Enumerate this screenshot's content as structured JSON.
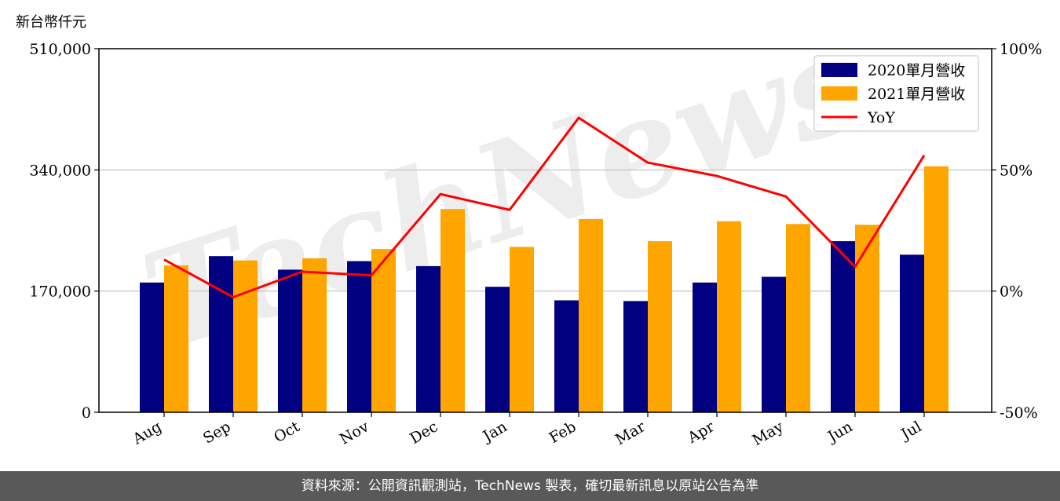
{
  "unit_label": "新台幣仟元",
  "footer_text": "資料來源：公開資訊觀測站，TechNews 製表，確切最新訊息以原站公告為準",
  "watermark": "TechNews",
  "chart_data": {
    "type": "bar",
    "categories": [
      "Aug",
      "Sep",
      "Oct",
      "Nov",
      "Dec",
      "Jan",
      "Feb",
      "Mar",
      "Apr",
      "May",
      "Jun",
      "Jul"
    ],
    "series": [
      {
        "name": "2020單月營收",
        "type": "bar",
        "color": "#000080",
        "values": [
          182000,
          219000,
          200000,
          212000,
          205000,
          176000,
          157000,
          156000,
          182000,
          190000,
          240000,
          221000
        ]
      },
      {
        "name": "2021單月營收",
        "type": "bar",
        "color": "#FFA500",
        "values": [
          206000,
          213000,
          216000,
          229000,
          285000,
          232000,
          271000,
          240000,
          268000,
          264000,
          263000,
          345000
        ]
      },
      {
        "name": "YoY",
        "type": "line",
        "axis": "right",
        "color": "#FF0000",
        "values": [
          0.13,
          -0.025,
          0.08,
          0.065,
          0.4,
          0.335,
          0.715,
          0.53,
          0.475,
          0.39,
          0.1,
          0.56
        ]
      }
    ],
    "y_left": {
      "min": 0,
      "max": 510000,
      "ticks": [
        0,
        170000,
        340000,
        510000
      ],
      "tick_labels": [
        "0",
        "170,000",
        "340,000",
        "510,000"
      ]
    },
    "y_right": {
      "min": -0.5,
      "max": 1.0,
      "ticks": [
        -0.5,
        0,
        0.5,
        1.0
      ],
      "tick_labels": [
        "-50%",
        "0%",
        "50%",
        "100%"
      ]
    },
    "grid": "horizontal",
    "legend_position": "top-right"
  }
}
